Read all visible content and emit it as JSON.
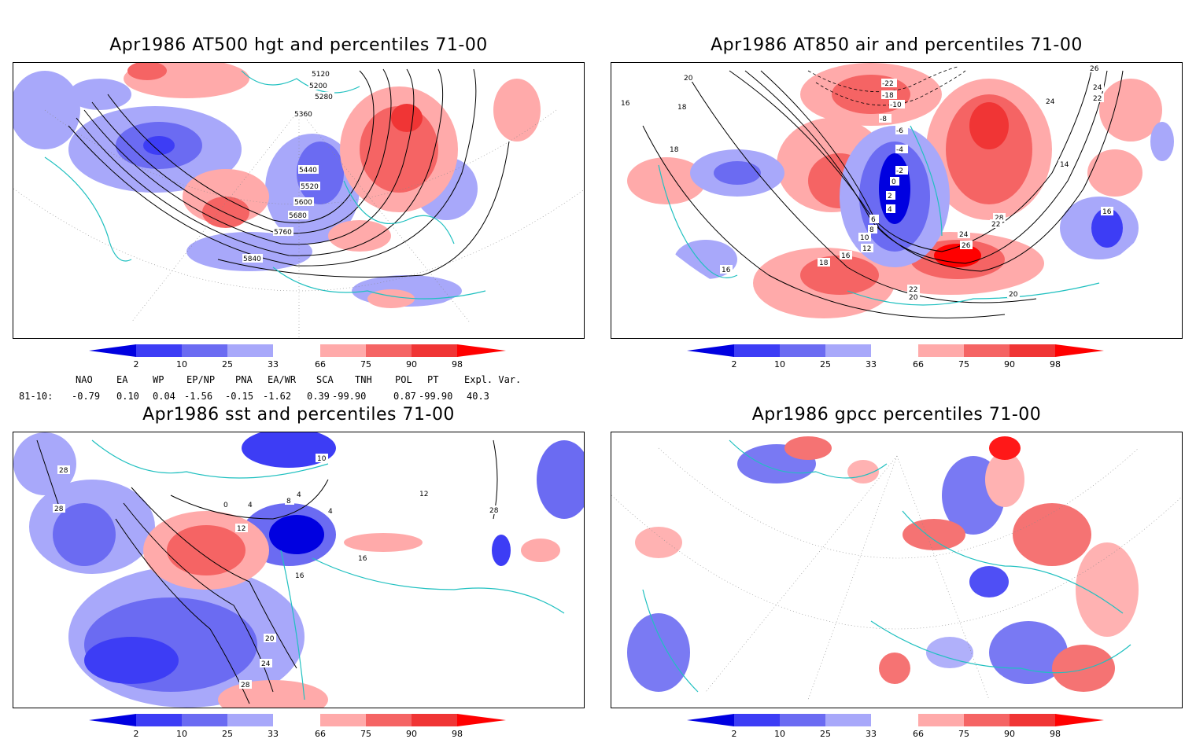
{
  "panels": [
    {
      "title": "Apr1986 AT500 hgt and percentiles 71-00",
      "contour_labels": [
        "5120",
        "5200",
        "5280",
        "5360",
        "5440",
        "5520",
        "5600",
        "5680",
        "5760",
        "5840"
      ]
    },
    {
      "title": "Apr1986 AT850 air and percentiles 71-00",
      "contour_labels": [
        "20",
        "18",
        "16",
        "18",
        "16",
        "-22",
        "-18",
        "-10",
        "-8",
        "-6",
        "-4",
        "-2",
        "0",
        "2",
        "4",
        "6",
        "8",
        "10",
        "12",
        "16",
        "18",
        "20",
        "22",
        "24",
        "26",
        "28",
        "22",
        "24",
        "22",
        "24",
        "20",
        "26",
        "14",
        "16"
      ]
    },
    {
      "title": "Apr1986 sst and percentiles 71-00",
      "contour_labels": [
        "28",
        "28",
        "0",
        "4",
        "8",
        "4",
        "10",
        "12",
        "16",
        "16",
        "20",
        "24",
        "28",
        "12",
        "28",
        "4"
      ]
    },
    {
      "title": "Apr1986 gpcc percentiles 71-00",
      "contour_labels": []
    }
  ],
  "colorbar": {
    "ticks": [
      "2",
      "10",
      "25",
      "33",
      "66",
      "75",
      "90",
      "98"
    ],
    "colors": [
      "#0000e0",
      "#3d3df5",
      "#6b6bf2",
      "#a8a8fa",
      "#ffffff",
      "#ffaaaa",
      "#f56464",
      "#f03535",
      "#ff0000"
    ]
  },
  "indices": {
    "headers": [
      "NAO",
      "EA",
      "WP",
      "EP/NP",
      "PNA",
      "EA/WR",
      "SCA",
      "TNH",
      "POL",
      "PT",
      "Expl. Var."
    ],
    "row_label": "81-10:",
    "values": [
      "-0.79",
      "0.10",
      "0.04",
      "-1.56",
      "-0.15",
      "-1.62",
      "0.39",
      "-99.90",
      "0.87",
      "-99.90",
      "40.3"
    ]
  }
}
